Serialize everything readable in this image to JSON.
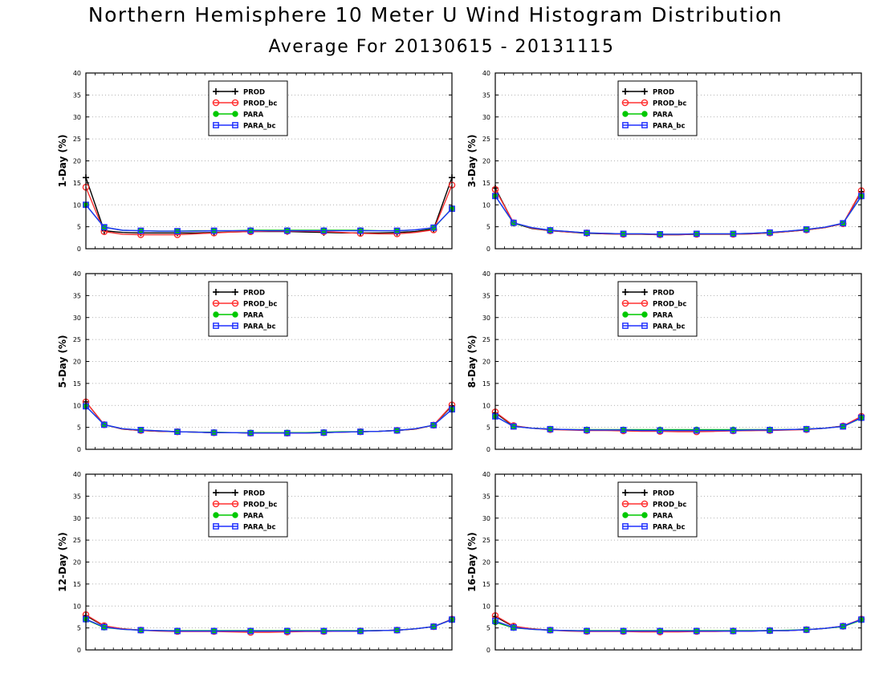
{
  "header": {
    "title": "Northern Hemisphere 10 Meter U Wind Histogram Distribution",
    "subtitle": "Average For 20130615 - 20131115"
  },
  "colors": {
    "PROD": "#000000",
    "PROD_bc": "#ff3030",
    "PARA": "#00c800",
    "PARA_bc": "#2030ff"
  },
  "chart_data": [
    {
      "type": "line",
      "ylabel": "1-Day (%)",
      "ylim": [
        0,
        40
      ],
      "yticks": [
        0,
        5,
        10,
        15,
        20,
        25,
        30,
        35,
        40
      ],
      "grid": true,
      "legend_position": "top-center",
      "x": [
        1,
        2,
        3,
        4,
        5,
        6,
        7,
        8,
        9,
        10,
        11,
        12,
        13,
        14,
        15,
        16,
        17,
        18,
        19,
        20,
        21
      ],
      "series": [
        {
          "name": "PROD",
          "values": [
            16.2,
            4.1,
            3.7,
            3.6,
            3.6,
            3.6,
            3.6,
            3.7,
            3.8,
            3.9,
            3.9,
            3.9,
            3.8,
            3.7,
            3.6,
            3.6,
            3.6,
            3.7,
            3.9,
            4.5,
            16.2
          ]
        },
        {
          "name": "PROD_bc",
          "values": [
            14.0,
            3.9,
            3.3,
            3.2,
            3.2,
            3.2,
            3.4,
            3.6,
            3.8,
            3.9,
            4.0,
            4.0,
            4.0,
            3.9,
            3.7,
            3.5,
            3.4,
            3.4,
            3.7,
            4.3,
            14.5
          ]
        },
        {
          "name": "PARA",
          "values": [
            10.0,
            4.9,
            4.2,
            4.1,
            4.0,
            4.0,
            4.1,
            4.1,
            4.1,
            4.2,
            4.2,
            4.2,
            4.2,
            4.2,
            4.2,
            4.2,
            4.1,
            4.1,
            4.3,
            4.7,
            9.2
          ]
        },
        {
          "name": "PARA_bc",
          "values": [
            10.0,
            4.9,
            4.2,
            4.1,
            4.0,
            4.0,
            4.0,
            4.1,
            4.1,
            4.1,
            4.1,
            4.1,
            4.1,
            4.1,
            4.1,
            4.1,
            4.1,
            4.1,
            4.3,
            4.8,
            9.1
          ]
        }
      ]
    },
    {
      "type": "line",
      "ylabel": "3-Day (%)",
      "ylim": [
        0,
        40
      ],
      "yticks": [
        0,
        5,
        10,
        15,
        20,
        25,
        30,
        35,
        40
      ],
      "grid": true,
      "legend_position": "top-center",
      "x": [
        1,
        2,
        3,
        4,
        5,
        6,
        7,
        8,
        9,
        10,
        11,
        12,
        13,
        14,
        15,
        16,
        17,
        18,
        19,
        20,
        21
      ],
      "series": [
        {
          "name": "PROD",
          "values": [
            13.8,
            5.8,
            4.6,
            4.1,
            3.8,
            3.5,
            3.4,
            3.3,
            3.3,
            3.2,
            3.2,
            3.3,
            3.3,
            3.3,
            3.4,
            3.6,
            3.9,
            4.3,
            4.8,
            5.7,
            13.0
          ]
        },
        {
          "name": "PROD_bc",
          "values": [
            13.5,
            5.9,
            4.7,
            4.1,
            3.8,
            3.6,
            3.4,
            3.3,
            3.3,
            3.2,
            3.2,
            3.3,
            3.3,
            3.3,
            3.4,
            3.6,
            3.9,
            4.3,
            4.8,
            5.7,
            13.2
          ]
        },
        {
          "name": "PARA",
          "values": [
            12.0,
            5.8,
            4.8,
            4.2,
            3.9,
            3.6,
            3.5,
            3.4,
            3.4,
            3.3,
            3.3,
            3.4,
            3.4,
            3.4,
            3.5,
            3.7,
            4.0,
            4.4,
            4.9,
            5.8,
            11.9
          ]
        },
        {
          "name": "PARA_bc",
          "values": [
            12.0,
            5.9,
            4.8,
            4.2,
            3.9,
            3.6,
            3.5,
            3.4,
            3.4,
            3.3,
            3.3,
            3.4,
            3.4,
            3.4,
            3.5,
            3.7,
            4.0,
            4.4,
            4.9,
            5.8,
            12.0
          ]
        }
      ]
    },
    {
      "type": "line",
      "ylabel": "5-Day (%)",
      "ylim": [
        0,
        40
      ],
      "yticks": [
        0,
        5,
        10,
        15,
        20,
        25,
        30,
        35,
        40
      ],
      "grid": true,
      "legend_position": "top-center",
      "x": [
        1,
        2,
        3,
        4,
        5,
        6,
        7,
        8,
        9,
        10,
        11,
        12,
        13,
        14,
        15,
        16,
        17,
        18,
        19,
        20,
        21
      ],
      "series": [
        {
          "name": "PROD",
          "values": [
            10.8,
            5.6,
            4.6,
            4.3,
            4.1,
            4.0,
            3.9,
            3.8,
            3.8,
            3.7,
            3.7,
            3.7,
            3.7,
            3.8,
            3.9,
            4.0,
            4.1,
            4.3,
            4.6,
            5.5,
            9.9
          ]
        },
        {
          "name": "PROD_bc",
          "values": [
            10.8,
            5.6,
            4.6,
            4.3,
            4.1,
            4.0,
            3.9,
            3.8,
            3.8,
            3.7,
            3.7,
            3.7,
            3.7,
            3.8,
            3.9,
            4.0,
            4.1,
            4.3,
            4.6,
            5.5,
            10.1
          ]
        },
        {
          "name": "PARA",
          "values": [
            9.8,
            5.6,
            4.7,
            4.4,
            4.2,
            4.0,
            3.9,
            3.9,
            3.8,
            3.8,
            3.8,
            3.8,
            3.8,
            3.9,
            4.0,
            4.0,
            4.1,
            4.3,
            4.7,
            5.5,
            9.1
          ]
        },
        {
          "name": "PARA_bc",
          "values": [
            9.8,
            5.6,
            4.7,
            4.4,
            4.2,
            4.0,
            3.9,
            3.8,
            3.8,
            3.7,
            3.7,
            3.7,
            3.7,
            3.8,
            3.9,
            4.0,
            4.1,
            4.3,
            4.7,
            5.5,
            9.1
          ]
        }
      ]
    },
    {
      "type": "line",
      "ylabel": "8-Day (%)",
      "ylim": [
        0,
        40
      ],
      "yticks": [
        0,
        5,
        10,
        15,
        20,
        25,
        30,
        35,
        40
      ],
      "grid": true,
      "legend_position": "top-center",
      "x": [
        1,
        2,
        3,
        4,
        5,
        6,
        7,
        8,
        9,
        10,
        11,
        12,
        13,
        14,
        15,
        16,
        17,
        18,
        19,
        20,
        21
      ],
      "series": [
        {
          "name": "PROD",
          "values": [
            8.3,
            5.3,
            4.8,
            4.6,
            4.5,
            4.4,
            4.4,
            4.3,
            4.3,
            4.3,
            4.3,
            4.3,
            4.3,
            4.3,
            4.3,
            4.4,
            4.5,
            4.6,
            4.8,
            5.3,
            7.3
          ]
        },
        {
          "name": "PROD_bc",
          "values": [
            8.5,
            5.4,
            4.8,
            4.5,
            4.4,
            4.3,
            4.3,
            4.2,
            4.1,
            4.1,
            4.0,
            4.0,
            4.1,
            4.2,
            4.3,
            4.3,
            4.4,
            4.5,
            4.8,
            5.3,
            7.5
          ]
        },
        {
          "name": "PARA",
          "values": [
            7.5,
            5.2,
            4.8,
            4.6,
            4.5,
            4.5,
            4.5,
            4.5,
            4.5,
            4.5,
            4.5,
            4.5,
            4.5,
            4.5,
            4.5,
            4.5,
            4.5,
            4.6,
            4.8,
            5.2,
            7.1
          ]
        },
        {
          "name": "PARA_bc",
          "values": [
            7.5,
            5.2,
            4.8,
            4.6,
            4.5,
            4.4,
            4.4,
            4.4,
            4.3,
            4.3,
            4.3,
            4.3,
            4.3,
            4.3,
            4.4,
            4.4,
            4.5,
            4.6,
            4.8,
            5.2,
            7.2
          ]
        }
      ]
    },
    {
      "type": "line",
      "ylabel": "12-Day (%)",
      "ylim": [
        0,
        40
      ],
      "yticks": [
        0,
        5,
        10,
        15,
        20,
        25,
        30,
        35,
        40
      ],
      "grid": true,
      "legend_position": "top-center",
      "x": [
        1,
        2,
        3,
        4,
        5,
        6,
        7,
        8,
        9,
        10,
        11,
        12,
        13,
        14,
        15,
        16,
        17,
        18,
        19,
        20,
        21
      ],
      "series": [
        {
          "name": "PROD",
          "values": [
            7.8,
            5.4,
            4.8,
            4.5,
            4.4,
            4.3,
            4.3,
            4.3,
            4.3,
            4.3,
            4.3,
            4.3,
            4.3,
            4.3,
            4.3,
            4.3,
            4.4,
            4.5,
            4.8,
            5.3,
            6.9
          ]
        },
        {
          "name": "PROD_bc",
          "values": [
            8.0,
            5.5,
            4.8,
            4.5,
            4.3,
            4.2,
            4.2,
            4.2,
            4.1,
            4.0,
            4.0,
            4.1,
            4.2,
            4.2,
            4.3,
            4.3,
            4.4,
            4.5,
            4.8,
            5.3,
            7.0
          ]
        },
        {
          "name": "PARA",
          "values": [
            6.9,
            5.1,
            4.7,
            4.5,
            4.4,
            4.4,
            4.4,
            4.4,
            4.4,
            4.4,
            4.4,
            4.4,
            4.4,
            4.4,
            4.4,
            4.4,
            4.4,
            4.5,
            4.8,
            5.3,
            6.9
          ]
        },
        {
          "name": "PARA_bc",
          "values": [
            7.0,
            5.2,
            4.7,
            4.5,
            4.4,
            4.3,
            4.3,
            4.3,
            4.3,
            4.3,
            4.3,
            4.3,
            4.3,
            4.3,
            4.3,
            4.3,
            4.4,
            4.5,
            4.8,
            5.3,
            6.9
          ]
        }
      ]
    },
    {
      "type": "line",
      "ylabel": "16-Day (%)",
      "ylim": [
        0,
        40
      ],
      "yticks": [
        0,
        5,
        10,
        15,
        20,
        25,
        30,
        35,
        40
      ],
      "grid": true,
      "legend_position": "top-center",
      "x": [
        1,
        2,
        3,
        4,
        5,
        6,
        7,
        8,
        9,
        10,
        11,
        12,
        13,
        14,
        15,
        16,
        17,
        18,
        19,
        20,
        21
      ],
      "series": [
        {
          "name": "PROD",
          "values": [
            7.6,
            5.3,
            4.8,
            4.5,
            4.4,
            4.3,
            4.3,
            4.3,
            4.3,
            4.3,
            4.3,
            4.3,
            4.3,
            4.3,
            4.3,
            4.4,
            4.4,
            4.6,
            4.9,
            5.4,
            6.9
          ]
        },
        {
          "name": "PROD_bc",
          "values": [
            7.8,
            5.4,
            4.8,
            4.5,
            4.3,
            4.2,
            4.2,
            4.2,
            4.1,
            4.1,
            4.1,
            4.2,
            4.2,
            4.3,
            4.3,
            4.4,
            4.4,
            4.6,
            4.9,
            5.4,
            7.0
          ]
        },
        {
          "name": "PARA",
          "values": [
            6.3,
            5.0,
            4.7,
            4.5,
            4.4,
            4.4,
            4.4,
            4.4,
            4.4,
            4.4,
            4.4,
            4.4,
            4.4,
            4.4,
            4.4,
            4.4,
            4.5,
            4.6,
            4.9,
            5.3,
            6.8
          ]
        },
        {
          "name": "PARA_bc",
          "values": [
            6.6,
            5.1,
            4.7,
            4.5,
            4.4,
            4.3,
            4.3,
            4.3,
            4.3,
            4.3,
            4.3,
            4.3,
            4.3,
            4.3,
            4.3,
            4.4,
            4.4,
            4.6,
            4.9,
            5.4,
            6.9
          ]
        }
      ]
    }
  ]
}
